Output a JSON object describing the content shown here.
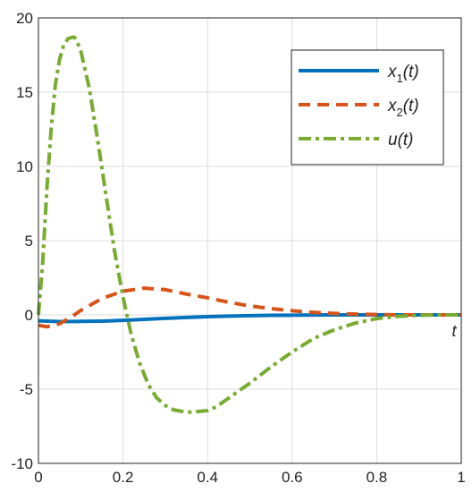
{
  "chart_data": {
    "type": "line",
    "title": "",
    "xlabel": "",
    "ylabel": "",
    "axis_variable_label": "t",
    "xlim": [
      0,
      1
    ],
    "ylim": [
      -10,
      20
    ],
    "x_ticks": [
      0,
      0.2,
      0.4,
      0.6,
      0.8,
      1
    ],
    "x_tick_labels": [
      "0",
      "0.2",
      "0.4",
      "0.6",
      "0.8",
      "1"
    ],
    "y_ticks": [
      -10,
      -5,
      0,
      5,
      10,
      15,
      20
    ],
    "y_tick_labels": [
      "-10",
      "-5",
      "0",
      "5",
      "10",
      "15",
      "20"
    ],
    "grid": true,
    "legend_position": "top-right",
    "series": [
      {
        "name": "x1(t)",
        "legend_main": "x",
        "legend_sub": "1",
        "legend_suffix": "(t)",
        "color": "#0072BD",
        "style": "solid",
        "x": [
          0,
          0.05,
          0.1,
          0.15,
          0.2,
          0.25,
          0.3,
          0.35,
          0.4,
          0.45,
          0.5,
          0.55,
          0.6,
          0.65,
          0.7,
          0.8,
          0.9,
          1.0
        ],
        "y": [
          -0.4,
          -0.45,
          -0.44,
          -0.42,
          -0.37,
          -0.3,
          -0.23,
          -0.17,
          -0.12,
          -0.08,
          -0.05,
          -0.03,
          -0.02,
          -0.01,
          0,
          0,
          0,
          0
        ]
      },
      {
        "name": "x2(t)",
        "legend_main": "x",
        "legend_sub": "2",
        "legend_suffix": "(t)",
        "color": "#D95319",
        "style": "dashed",
        "x": [
          0,
          0.02,
          0.05,
          0.08,
          0.1,
          0.15,
          0.2,
          0.25,
          0.3,
          0.35,
          0.4,
          0.45,
          0.5,
          0.55,
          0.6,
          0.65,
          0.7,
          0.75,
          0.8,
          0.85,
          0.9,
          1.0
        ],
        "y": [
          -0.7,
          -0.8,
          -0.6,
          -0.1,
          0.3,
          1.1,
          1.6,
          1.8,
          1.7,
          1.4,
          1.15,
          0.85,
          0.6,
          0.42,
          0.28,
          0.17,
          0.1,
          0.05,
          0.02,
          0,
          0,
          0
        ]
      },
      {
        "name": "u(t)",
        "legend_main": "u",
        "legend_sub": "",
        "legend_suffix": "(t)",
        "color": "#77AC30",
        "style": "dashdot",
        "x": [
          0,
          0.01,
          0.02,
          0.03,
          0.04,
          0.05,
          0.06,
          0.07,
          0.08,
          0.085,
          0.09,
          0.1,
          0.12,
          0.14,
          0.16,
          0.18,
          0.2,
          0.22,
          0.24,
          0.26,
          0.28,
          0.3,
          0.32,
          0.34,
          0.36,
          0.38,
          0.4,
          0.42,
          0.45,
          0.5,
          0.55,
          0.6,
          0.65,
          0.7,
          0.75,
          0.8,
          0.85,
          0.9,
          0.95,
          1.0
        ],
        "y": [
          0,
          3.5,
          8.5,
          12.5,
          15.5,
          17.2,
          18.2,
          18.6,
          18.7,
          18.7,
          18.5,
          17.8,
          15.3,
          11.8,
          8.0,
          4.3,
          1.2,
          -1.4,
          -3.3,
          -4.7,
          -5.6,
          -6.1,
          -6.4,
          -6.5,
          -6.55,
          -6.5,
          -6.45,
          -6.2,
          -5.6,
          -4.6,
          -3.5,
          -2.5,
          -1.6,
          -1.0,
          -0.55,
          -0.25,
          -0.1,
          -0.03,
          0,
          0
        ]
      }
    ]
  }
}
